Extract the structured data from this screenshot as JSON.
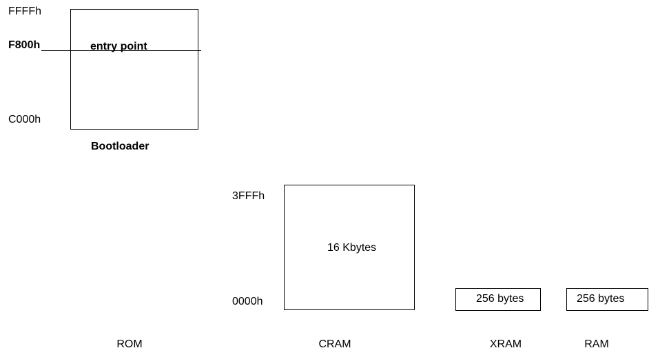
{
  "bootloader": {
    "addr_top": "FFFFh",
    "addr_entry": "F800h",
    "addr_bottom": "C000h",
    "entry_label": "entry point",
    "caption": "Bootloader"
  },
  "cram": {
    "addr_top": "3FFFh",
    "addr_bottom": "0000h",
    "size_label": "16 Kbytes"
  },
  "xram": {
    "size_label": "256 bytes"
  },
  "ram": {
    "size_label": "256 bytes"
  },
  "columns": {
    "rom": "ROM",
    "cram": "CRAM",
    "xram": "XRAM",
    "ram": "RAM"
  }
}
